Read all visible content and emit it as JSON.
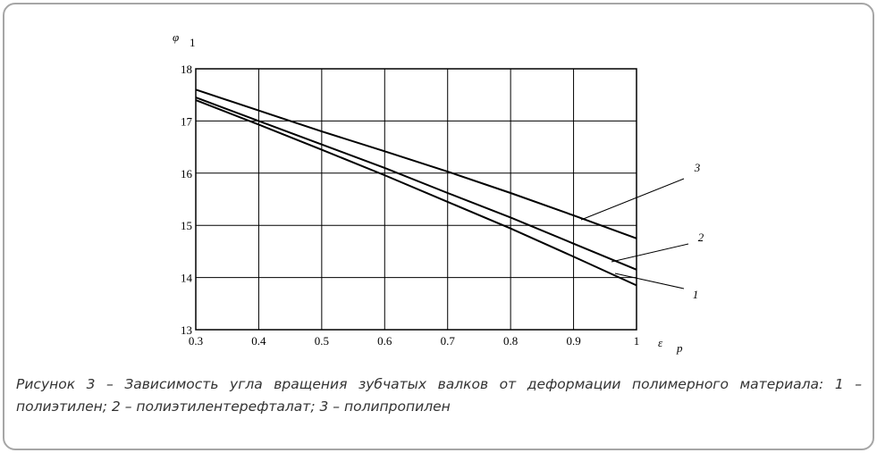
{
  "chart_data": {
    "type": "line",
    "y_label": "φ",
    "y_label_subscript": "1",
    "x_label": "ε",
    "x_label_subscript": "p",
    "x": [
      0.3,
      0.4,
      0.5,
      0.6,
      0.7,
      0.8,
      0.9,
      1
    ],
    "series": [
      {
        "name": "3",
        "color": "#000000",
        "values": [
          17.6,
          17.2,
          16.8,
          16.42,
          16.03,
          15.62,
          15.19,
          14.75
        ]
      },
      {
        "name": "2",
        "color": "#000000",
        "values": [
          17.45,
          17.0,
          16.55,
          16.1,
          15.62,
          15.15,
          14.65,
          14.15
        ]
      },
      {
        "name": "1",
        "color": "#000000",
        "values": [
          17.4,
          16.93,
          16.45,
          15.96,
          15.45,
          14.94,
          14.4,
          13.85
        ]
      }
    ],
    "xlim": [
      0.3,
      1
    ],
    "ylim": [
      13,
      18
    ],
    "xticks": [
      0.3,
      0.4,
      0.5,
      0.6,
      0.7,
      0.8,
      0.9,
      1
    ],
    "yticks": [
      13,
      14,
      15,
      16,
      17,
      18
    ],
    "grid": true,
    "caption": "Рисунок 3 – Зависимость угла вращения зубчатых валков от деформации полимерного материала: 1 – полиэтилен; 2 – полиэтилентерефталат; 3 – полипропилен"
  }
}
